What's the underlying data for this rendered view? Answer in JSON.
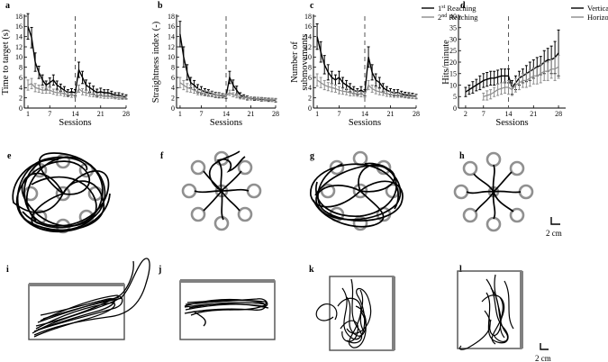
{
  "panel_letters": [
    "a",
    "b",
    "c",
    "d",
    "e",
    "f",
    "g",
    "h",
    "i",
    "j",
    "k",
    "l"
  ],
  "scale_bar_label": "2 cm",
  "colors": {
    "black": "#000000",
    "gray": "#8c8c8c",
    "target_gray": "#909090"
  },
  "chart_data": [
    {
      "type": "line",
      "panel": "a",
      "xlabel": "Sessions",
      "ylabel": "Time to target (s)",
      "xlim": [
        0,
        28
      ],
      "ylim": [
        0,
        18
      ],
      "xticks": [
        "1",
        "7",
        "14",
        "21",
        "28"
      ],
      "xtick_values": [
        1,
        7,
        14,
        21,
        28
      ],
      "yticks": [
        "0",
        "2",
        "4",
        "6",
        "8",
        "10",
        "12",
        "14",
        "16",
        "18"
      ],
      "ytick_values": [
        0,
        2,
        4,
        6,
        8,
        10,
        12,
        14,
        16,
        18
      ],
      "vline": 14,
      "series": [
        {
          "color": "black",
          "x": [
            1,
            2,
            3,
            4,
            5,
            6,
            7,
            8,
            9,
            10,
            11,
            12,
            13,
            14,
            15,
            16,
            17,
            18,
            19,
            20,
            21,
            22,
            23,
            24,
            25,
            26,
            27,
            28
          ],
          "y": [
            16,
            13.8,
            9,
            7,
            5.5,
            4.5,
            5,
            5.5,
            4.5,
            4,
            3.5,
            3,
            3.2,
            3,
            7.5,
            6,
            4.5,
            4,
            3.5,
            3,
            3.2,
            3,
            3,
            2.8,
            2.5,
            2.5,
            2.3,
            2.2
          ],
          "err": [
            2.5,
            2,
            1.8,
            1.2,
            1,
            0.8,
            0.9,
            1,
            0.8,
            0.7,
            0.7,
            0.6,
            0.6,
            0.6,
            1.5,
            1.2,
            1,
            0.9,
            0.8,
            0.7,
            0.7,
            0.6,
            0.6,
            0.5,
            0.5,
            0.5,
            0.5,
            0.4
          ]
        },
        {
          "color": "gray",
          "x": [
            1,
            2,
            3,
            4,
            5,
            6,
            7,
            8,
            9,
            10,
            11,
            12,
            13,
            14,
            15,
            16,
            17,
            18,
            19,
            20,
            21,
            22,
            23,
            24,
            25,
            26,
            27,
            28
          ],
          "y": [
            4.5,
            4.8,
            4,
            3.8,
            3.5,
            3.5,
            3.5,
            3.2,
            3,
            3,
            2.8,
            2.6,
            2.5,
            2.5,
            3.8,
            3.2,
            3,
            2.8,
            2.6,
            2.5,
            2.4,
            2.3,
            2.3,
            2.2,
            2.1,
            2,
            2,
            2
          ],
          "err": [
            1,
            1,
            0.8,
            0.7,
            0.6,
            0.6,
            0.6,
            0.5,
            0.5,
            0.5,
            0.5,
            0.4,
            0.4,
            0.4,
            0.7,
            0.6,
            0.5,
            0.5,
            0.4,
            0.4,
            0.4,
            0.4,
            0.4,
            0.3,
            0.3,
            0.3,
            0.3,
            0.3
          ]
        }
      ]
    },
    {
      "type": "line",
      "panel": "b",
      "xlabel": "Sessions",
      "ylabel": "Straightness index (-)",
      "xlim": [
        0,
        28
      ],
      "ylim": [
        0,
        18
      ],
      "xticks": [
        "1",
        "7",
        "14",
        "21",
        "28"
      ],
      "xtick_values": [
        1,
        7,
        14,
        21,
        28
      ],
      "yticks": [
        "0",
        "2",
        "4",
        "6",
        "8",
        "10",
        "12",
        "14",
        "16",
        "18"
      ],
      "ytick_values": [
        0,
        2,
        4,
        6,
        8,
        10,
        12,
        14,
        16,
        18
      ],
      "vline": 14,
      "series": [
        {
          "color": "black",
          "x": [
            1,
            2,
            3,
            4,
            5,
            6,
            7,
            8,
            9,
            10,
            11,
            12,
            13,
            14,
            15,
            16,
            17,
            18,
            19,
            20,
            21,
            22,
            23,
            24,
            25,
            26,
            27,
            28
          ],
          "y": [
            14.5,
            10,
            7,
            5,
            4.5,
            3.8,
            3.5,
            3.2,
            3,
            2.8,
            2.6,
            2.5,
            2.4,
            2.3,
            6,
            4.5,
            3.5,
            2.5,
            2.2,
            2,
            1.9,
            1.8,
            1.8,
            1.7,
            1.7,
            1.6,
            1.6,
            1.5
          ],
          "err": [
            2.5,
            2,
            1.5,
            1,
            0.9,
            0.8,
            0.7,
            0.6,
            0.6,
            0.5,
            0.5,
            0.5,
            0.4,
            0.4,
            1.2,
            1,
            0.8,
            0.5,
            0.4,
            0.4,
            0.3,
            0.3,
            0.3,
            0.3,
            0.3,
            0.3,
            0.3,
            0.3
          ]
        },
        {
          "color": "gray",
          "x": [
            1,
            2,
            3,
            4,
            5,
            6,
            7,
            8,
            9,
            10,
            11,
            12,
            13,
            14,
            15,
            16,
            17,
            18,
            19,
            20,
            21,
            22,
            23,
            24,
            25,
            26,
            27,
            28
          ],
          "y": [
            5,
            4.5,
            4,
            3.8,
            3.5,
            3.2,
            3,
            2.9,
            2.8,
            2.7,
            2.6,
            2.5,
            2.5,
            2.4,
            3,
            2.6,
            2.4,
            2.2,
            2.1,
            2,
            1.9,
            1.9,
            1.8,
            1.8,
            1.7,
            1.7,
            1.6,
            1.6
          ],
          "err": [
            1,
            0.9,
            0.8,
            0.7,
            0.6,
            0.6,
            0.5,
            0.5,
            0.5,
            0.5,
            0.4,
            0.4,
            0.4,
            0.4,
            0.5,
            0.4,
            0.4,
            0.4,
            0.3,
            0.3,
            0.3,
            0.3,
            0.3,
            0.3,
            0.3,
            0.3,
            0.3,
            0.3
          ]
        }
      ]
    },
    {
      "type": "line",
      "panel": "c",
      "xlabel": "Sessions",
      "ylabel": "Number of submovements",
      "xlim": [
        0,
        28
      ],
      "ylim": [
        0,
        18
      ],
      "xticks": [
        "1",
        "7",
        "14",
        "21",
        "28"
      ],
      "xtick_values": [
        1,
        7,
        14,
        21,
        28
      ],
      "yticks": [
        "0",
        "2",
        "4",
        "6",
        "8",
        "10",
        "12",
        "14",
        "16",
        "18"
      ],
      "ytick_values": [
        0,
        2,
        4,
        6,
        8,
        10,
        12,
        14,
        16,
        18
      ],
      "vline": 14,
      "legend": {
        "position": "top-right",
        "entries": [
          {
            "prefix": "1",
            "sup": "st",
            "suffix": " Reaching",
            "color": "black"
          },
          {
            "prefix": "2",
            "sup": "nd",
            "suffix": " Reaching",
            "color": "gray"
          }
        ]
      },
      "series": [
        {
          "color": "black",
          "x": [
            1,
            2,
            3,
            4,
            5,
            6,
            7,
            8,
            9,
            10,
            11,
            12,
            13,
            14,
            15,
            16,
            17,
            18,
            19,
            20,
            21,
            22,
            23,
            24,
            25,
            26,
            27,
            28
          ],
          "y": [
            14,
            11,
            8.5,
            7,
            6,
            5.5,
            6,
            5,
            4.5,
            4,
            3.5,
            3.2,
            3.5,
            3,
            10,
            7,
            5.5,
            5,
            4,
            3.5,
            3.2,
            3,
            3,
            2.8,
            2.6,
            2.5,
            2.4,
            2.3
          ],
          "err": [
            2.5,
            2,
            1.8,
            1.5,
            1.2,
            1,
            1.2,
            1,
            0.9,
            0.8,
            0.7,
            0.6,
            0.7,
            0.6,
            2,
            1.5,
            1.2,
            1,
            0.8,
            0.7,
            0.6,
            0.6,
            0.6,
            0.5,
            0.5,
            0.5,
            0.5,
            0.4
          ]
        },
        {
          "color": "gray",
          "x": [
            1,
            2,
            3,
            4,
            5,
            6,
            7,
            8,
            9,
            10,
            11,
            12,
            13,
            14,
            15,
            16,
            17,
            18,
            19,
            20,
            21,
            22,
            23,
            24,
            25,
            26,
            27,
            28
          ],
          "y": [
            5.5,
            5,
            4.5,
            4.2,
            4,
            3.8,
            3.5,
            3.3,
            3.2,
            3,
            2.9,
            2.8,
            2.7,
            2.6,
            4.5,
            3.8,
            3.4,
            3.2,
            3,
            2.8,
            2.7,
            2.6,
            2.5,
            2.5,
            2.4,
            2.3,
            2.3,
            2.2
          ],
          "err": [
            1.2,
            1,
            0.9,
            0.8,
            0.8,
            0.7,
            0.7,
            0.6,
            0.6,
            0.6,
            0.5,
            0.5,
            0.5,
            0.5,
            0.9,
            0.7,
            0.6,
            0.6,
            0.5,
            0.5,
            0.5,
            0.5,
            0.4,
            0.4,
            0.4,
            0.4,
            0.4,
            0.4
          ]
        }
      ]
    },
    {
      "type": "line",
      "panel": "d",
      "xlabel": "Sessions",
      "ylabel": "Hits/minute",
      "xlim": [
        0,
        30
      ],
      "ylim": [
        0,
        40
      ],
      "xticks": [
        "2",
        "7",
        "14",
        "21",
        "28"
      ],
      "xtick_values": [
        2,
        7,
        14,
        21,
        28
      ],
      "yticks": [
        "0",
        "5",
        "10",
        "15",
        "20",
        "25",
        "30",
        "35",
        "40"
      ],
      "ytick_values": [
        0,
        5,
        10,
        15,
        20,
        25,
        30,
        35,
        40
      ],
      "vline": 14,
      "legend": {
        "position": "top-right",
        "entries": [
          {
            "prefix": "Vertical pong",
            "sup": "",
            "suffix": "",
            "color": "black"
          },
          {
            "prefix": "Horizontal pong",
            "sup": "",
            "suffix": "",
            "color": "gray"
          }
        ]
      },
      "series": [
        {
          "color": "black",
          "x": [
            2,
            3,
            4,
            5,
            6,
            7,
            8,
            9,
            10,
            11,
            12,
            13,
            14,
            15,
            16,
            17,
            18,
            19,
            20,
            21,
            22,
            23,
            24,
            25,
            26,
            27,
            28
          ],
          "y": [
            7,
            8,
            9,
            10,
            11,
            12,
            12.5,
            13,
            13,
            13.5,
            14,
            14,
            14,
            9,
            11,
            13,
            14,
            15,
            16,
            17,
            18,
            18.5,
            20,
            21,
            21,
            22,
            24
          ],
          "err": [
            2,
            2,
            2.5,
            2.5,
            3,
            3,
            3,
            3,
            3,
            3,
            3,
            3,
            3,
            3,
            3,
            3,
            3,
            3.5,
            4,
            4,
            4,
            4,
            5,
            5,
            6,
            7,
            10
          ]
        },
        {
          "color": "gray",
          "x": [
            7,
            8,
            9,
            10,
            11,
            12,
            13,
            14,
            15,
            16,
            17,
            18,
            19,
            20,
            21,
            22,
            23,
            24,
            25,
            26,
            27,
            28
          ],
          "y": [
            5,
            5.5,
            6,
            7,
            8,
            8.5,
            9,
            9,
            8,
            10,
            11,
            12,
            12,
            13,
            14,
            14,
            15,
            16,
            16,
            17,
            17,
            18
          ],
          "err": [
            1.5,
            2,
            2,
            2,
            2.5,
            2.5,
            2.5,
            3,
            2.5,
            3,
            3,
            3,
            3,
            3.5,
            3.5,
            3.5,
            4,
            4,
            4,
            4,
            5,
            5
          ]
        }
      ]
    }
  ]
}
